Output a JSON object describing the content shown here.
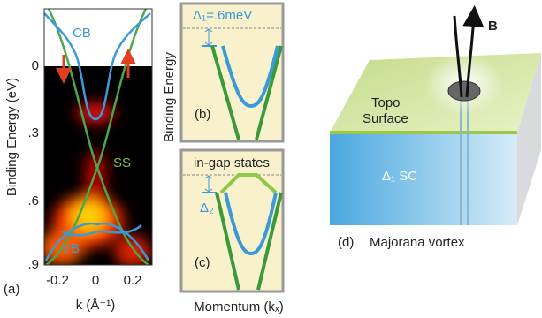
{
  "panel_a": {
    "label": "(a)",
    "y_axis_label": "Binding Energy (eV)",
    "x_axis_label": "k (Å⁻¹)",
    "yticks": [
      "0",
      ".3",
      ".6",
      ".9"
    ],
    "xticks": [
      "-0.2",
      "0",
      "0.2"
    ],
    "annotations": [
      "CB",
      "SS",
      "VB"
    ]
  },
  "panel_b": {
    "label": "(b)",
    "gap_label": "Δ₁=.6meV"
  },
  "panel_c": {
    "label": "(c)",
    "title": "in-gap states",
    "gap_label": "Δ₂"
  },
  "shared_axes": {
    "y_axis_label": "Binding Energy",
    "x_axis_label": "Momentum (kₓ)"
  },
  "panel_d": {
    "label": "(d)",
    "caption": "Majorana vortex",
    "field_label": "B",
    "surface_label": [
      "Topo",
      "Surface"
    ],
    "bulk_label": "Δ₁ SC"
  }
}
